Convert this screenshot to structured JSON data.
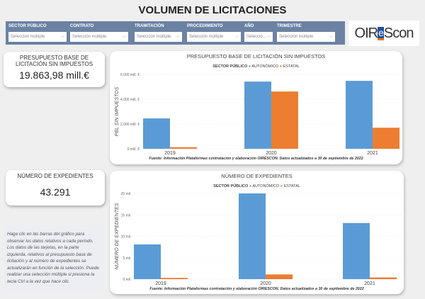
{
  "title": "VOLUMEN DE LICITACIONES",
  "filters": [
    {
      "label": "SECTOR PÚBLICO",
      "value": "Selección múltiple"
    },
    {
      "label": "CONTRATO",
      "value": "Selección múltiple"
    },
    {
      "label": "TRAMITACIÓN",
      "value": "Selección múltiple"
    },
    {
      "label": "PROCEDIMIENTO",
      "value": "Selección múltiple"
    },
    {
      "label": "AÑO",
      "value": "Selecció..."
    },
    {
      "label": "TRIMESTRE",
      "value": "Selección múltiple"
    }
  ],
  "logo": {
    "pre": "OIR",
    "mid": "e",
    "post": "Scon"
  },
  "cards": [
    {
      "title": "PRESUPUESTO BASE DE LICITACIÓN SIN IMPUESTOS",
      "value": "19.863,98 mill.€"
    },
    {
      "title": "NÚMERO DE EXPEDIENTES",
      "value": "43.291"
    }
  ],
  "note": "Haga clic en las barras del gráfico para observar los datos relativos a cada periodo. Los datos de las tarjetas, en la parte izquierda, relativos al presupuesto base de licitación y al número de expedientes se actualizarán en función de la selección. Puede realizar una selección múltiple si presiona la tecla Ctrl a la vez que hace clic.",
  "colors": {
    "autonomico": "#5b9bd5",
    "estatal": "#ed7d31",
    "filterbar": "#6b82a3"
  },
  "chart_data": [
    {
      "type": "bar",
      "title": "PRESUPUESTO BASE DE LICITACIÓN SIN IMPUESTOS",
      "legend_title": "SECTOR PÚBLICO",
      "legend": "top-center",
      "categories": [
        "2019",
        "2020",
        "2021"
      ],
      "series": [
        {
          "name": "AUTONÓMICO",
          "values": [
            2450,
            5420,
            5480
          ]
        },
        {
          "name": "ESTATAL",
          "values": [
            130,
            4620,
            1700
          ]
        }
      ],
      "ylabel": "PBL SIN IMPUESTOS",
      "ylim": [
        0,
        6000
      ],
      "yticks": [
        0,
        2000,
        4000,
        6000
      ],
      "ytick_labels": [
        "0 mill. €",
        "2.000 mill. €",
        "4.000 mill. €",
        "6.000 mill. €"
      ],
      "grid": true,
      "source": "Fuente: Información Plataformas contratación y elaboración OIRESCON. Datos actualizados a 30 de septiembre de 2022"
    },
    {
      "type": "bar",
      "title": "NÚMERO DE EXPEDIENTES",
      "legend_title": "SECTOR PÚBLICO",
      "legend": "top-center",
      "categories": [
        "2019",
        "2020",
        "2021"
      ],
      "series": [
        {
          "name": "AUTONÓMICO",
          "values": [
            8100,
            20000,
            13100
          ]
        },
        {
          "name": "ESTATAL",
          "values": [
            300,
            1100,
            400
          ]
        }
      ],
      "ylabel": "NÚMERO DE EXPEDIENTES",
      "ylim": [
        0,
        20000
      ],
      "yticks": [
        0,
        5000,
        10000,
        15000,
        20000
      ],
      "ytick_labels": [
        "0 mil",
        "5 mil",
        "10 mil",
        "15 mil",
        "20 mil"
      ],
      "grid": true,
      "source": "Fuente: Información Plataformas contratación y elaboración OIRESCON. Datos actualizados a 30 de septiembre de 2022"
    }
  ]
}
